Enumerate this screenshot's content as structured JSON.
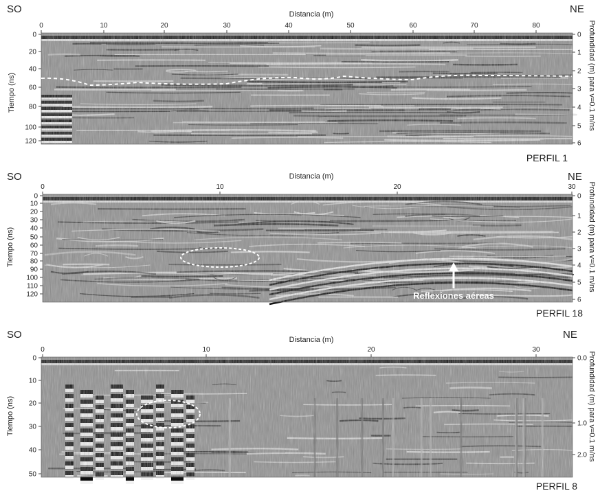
{
  "figure": {
    "panels": [
      {
        "id": "perfil-1",
        "left_label": "SO",
        "right_label": "NE",
        "x_axis_title": "Distancia (m)",
        "y_left_title": "Tiempo (ns)",
        "y_right_title": "Profundidad (m) para v=0.1 m/ns",
        "profile_label": "PERFIL 1",
        "x_ticks": [
          "0",
          "10",
          "20",
          "30",
          "40",
          "50",
          "60",
          "70",
          "80"
        ],
        "y_left_ticks": [
          "0",
          "20",
          "40",
          "60",
          "80",
          "100",
          "120"
        ],
        "y_right_ticks": [
          "0",
          "1",
          "2",
          "3",
          "4",
          "5",
          "6"
        ],
        "annotation": null
      },
      {
        "id": "perfil-18",
        "left_label": "SO",
        "right_label": "NE",
        "x_axis_title": "Distancia (m)",
        "y_left_title": "Tiempo (ns)",
        "y_right_title": "Profundidad (m) para v=0.1 m/ns",
        "profile_label": "PERFIL 18",
        "x_ticks": [
          "0",
          "10",
          "20",
          "30"
        ],
        "y_left_ticks": [
          "0",
          "10",
          "20",
          "30",
          "40",
          "50",
          "60",
          "70",
          "80",
          "90",
          "100",
          "110",
          "120"
        ],
        "y_right_ticks": [
          "0",
          "1",
          "2",
          "3",
          "4",
          "5",
          "6"
        ],
        "annotation": "Reflexiones aéreas"
      },
      {
        "id": "perfil-8",
        "left_label": "SO",
        "right_label": "NE",
        "x_axis_title": "Distancia (m)",
        "y_left_title": "Tiempo (ns)",
        "y_right_title": "Profundidad (m) para v=0.1 m/ns",
        "profile_label": "PERFIL 8",
        "x_ticks": [
          "0",
          "10",
          "20",
          "30"
        ],
        "y_left_ticks": [
          "0",
          "10",
          "20",
          "30",
          "40",
          "50"
        ],
        "y_right_ticks": [
          "0.0",
          "1.0",
          "2.0"
        ],
        "annotation": null
      }
    ]
  }
}
